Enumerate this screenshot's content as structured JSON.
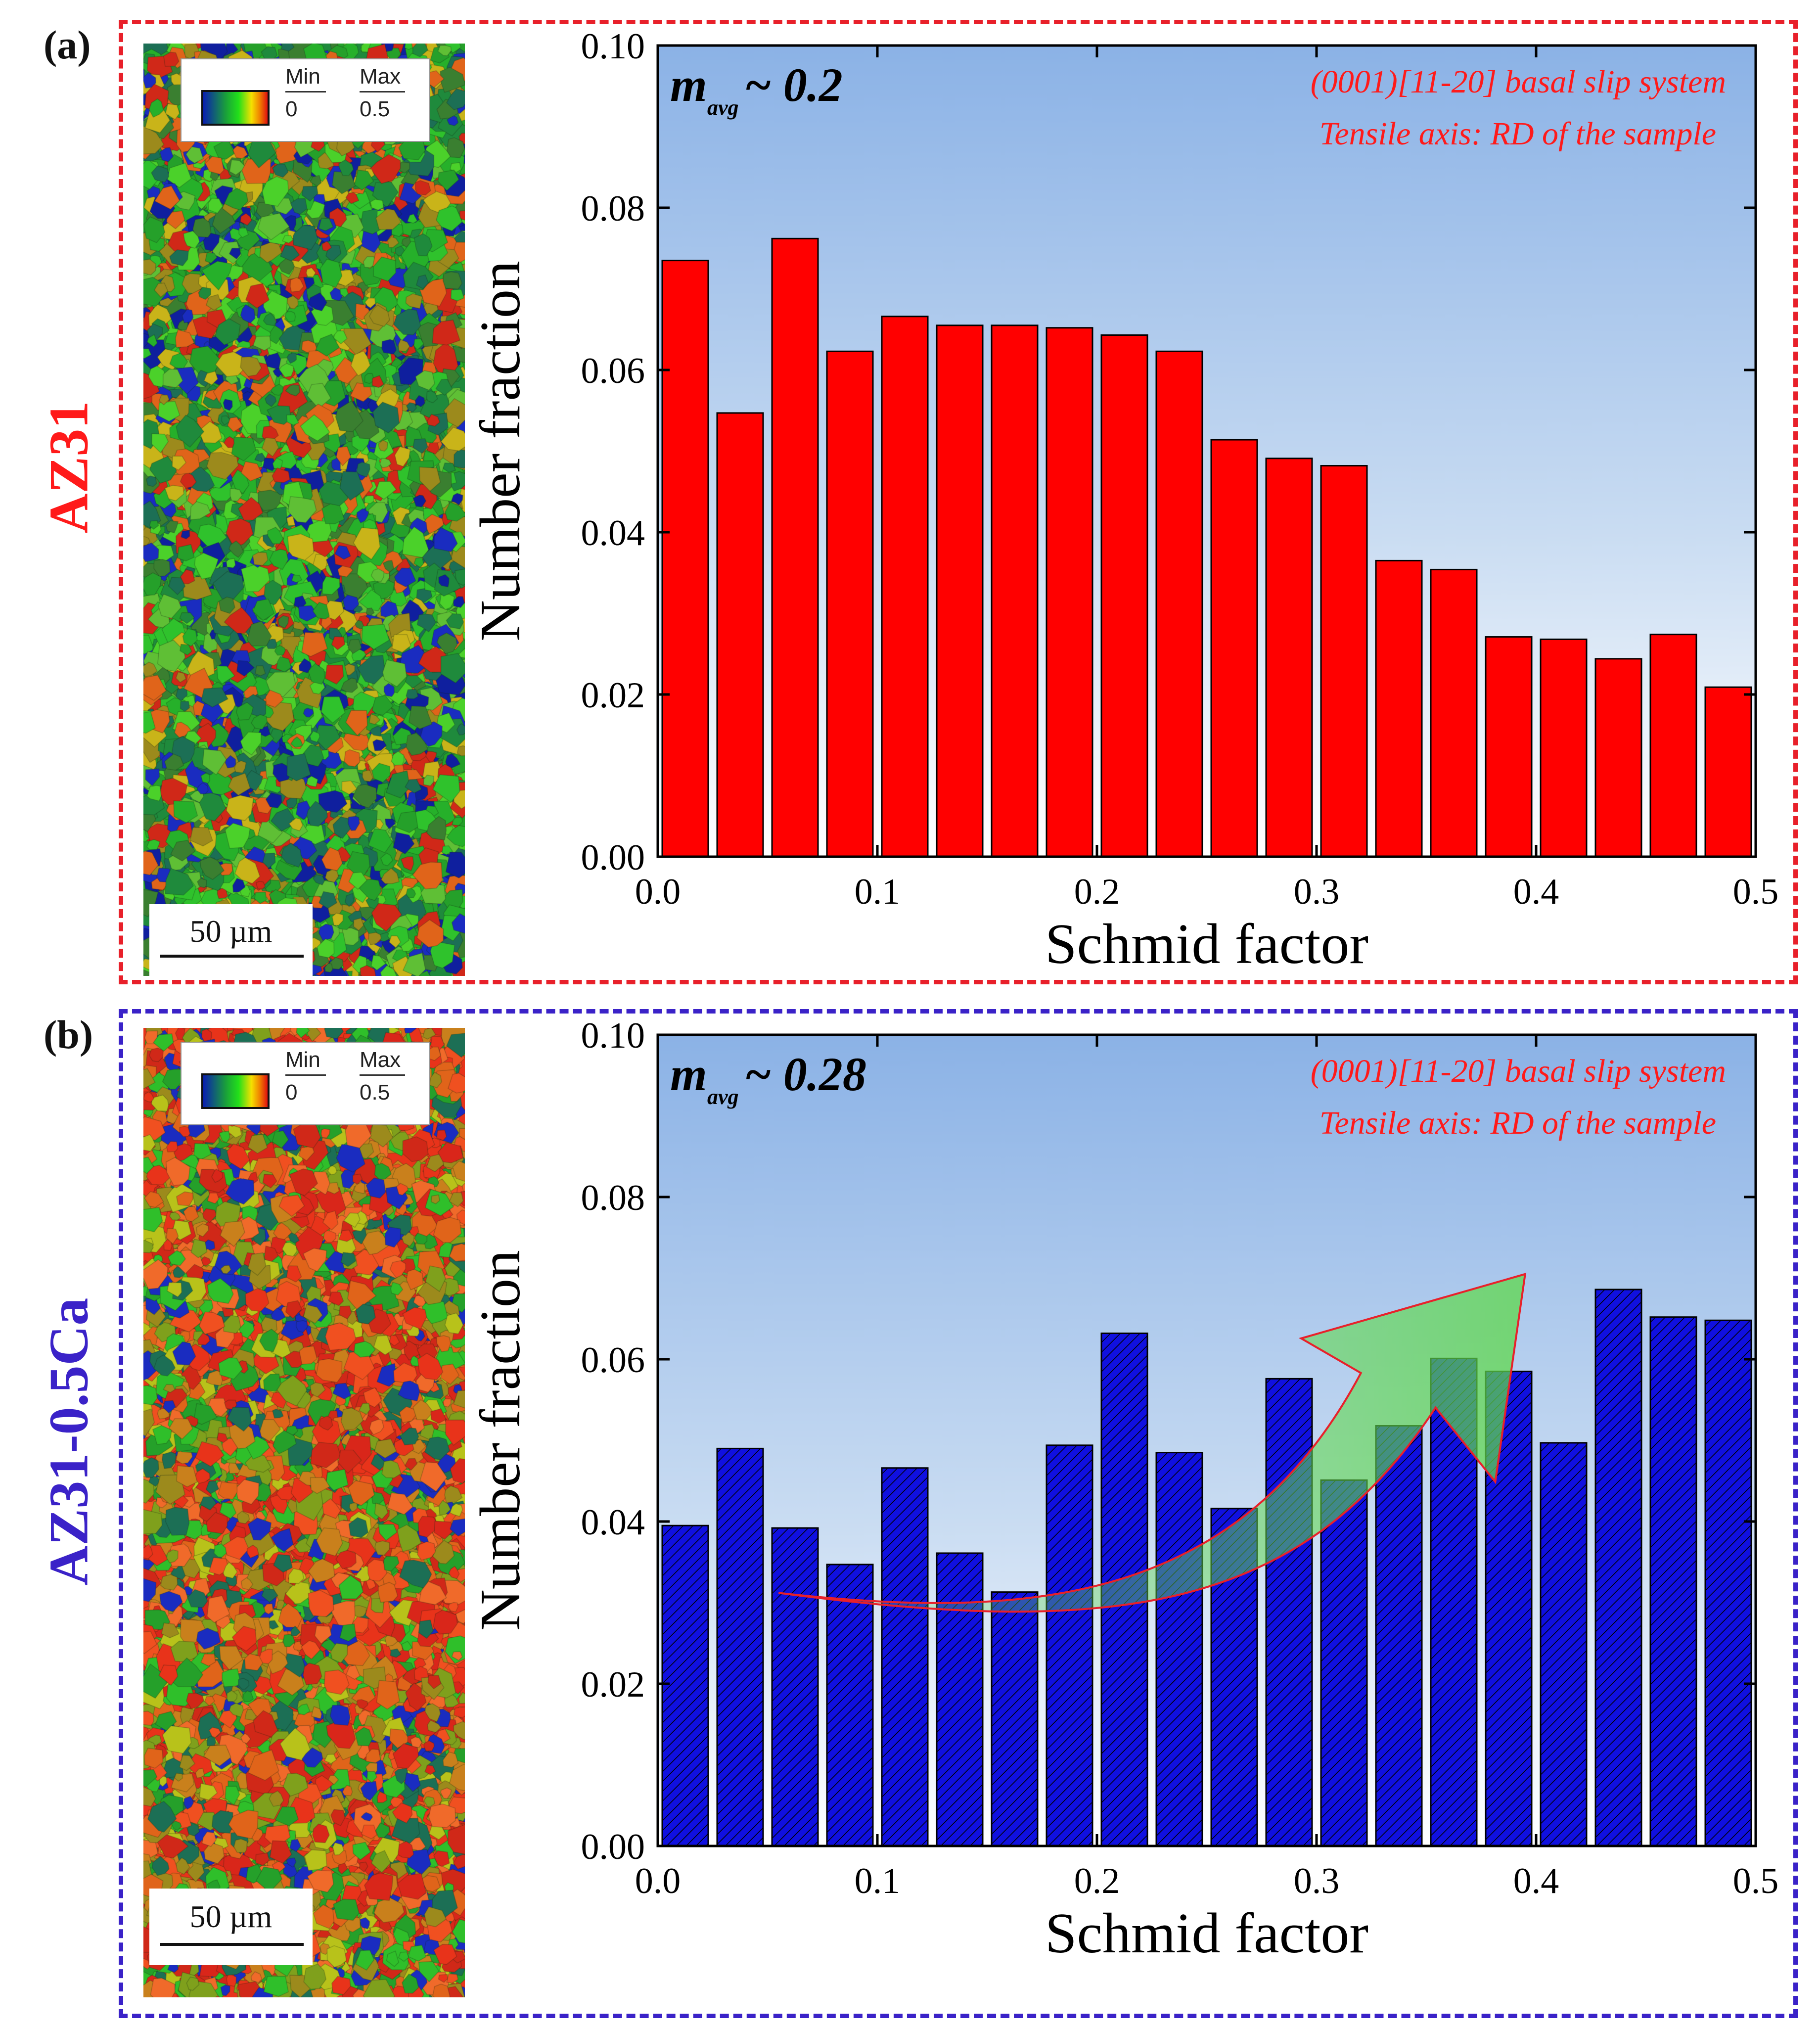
{
  "panels": [
    {
      "letter": "(a)",
      "sample_label": "AZ31",
      "label_color": "#ff1a1a",
      "frame_color": "#e8202a",
      "legend": {
        "min_label": "Min",
        "max_label": "Max",
        "min_value": "0",
        "max_value": "0.5"
      },
      "scale_bar": "50 µm",
      "annotation_m": "m",
      "annotation_sub": "avg",
      "annotation_value": "~ 0.2",
      "slip_system": "(0001)[11-20]  basal slip system",
      "tensile_axis": "Tensile axis: RD of the sample",
      "bar_color": "#ff0000"
    },
    {
      "letter": "(b)",
      "sample_label": "AZ31-0.5Ca",
      "label_color": "#3a22c8",
      "frame_color": "#3a22c8",
      "legend": {
        "min_label": "Min",
        "max_label": "Max",
        "min_value": "0",
        "max_value": "0.5"
      },
      "scale_bar": "50 µm",
      "annotation_m": "m",
      "annotation_sub": "avg",
      "annotation_value": "~ 0.28",
      "slip_system": "(0001)[11-20]  basal slip system",
      "tensile_axis": "Tensile axis: RD of the sample",
      "bar_color": "#1010e0"
    }
  ],
  "chart_data": [
    {
      "type": "bar",
      "xlabel": "Schmid factor",
      "ylabel": "Number fraction",
      "xlim": [
        0,
        0.5
      ],
      "ylim": [
        0,
        0.1
      ],
      "xticks": [
        "0.0",
        "0.1",
        "0.2",
        "0.3",
        "0.4",
        "0.5"
      ],
      "yticks": [
        "0.00",
        "0.02",
        "0.04",
        "0.06",
        "0.08",
        "0.10"
      ],
      "bin_centers": [
        0.0125,
        0.0375,
        0.0625,
        0.0875,
        0.1125,
        0.1375,
        0.1625,
        0.1875,
        0.2125,
        0.2375,
        0.2625,
        0.2875,
        0.3125,
        0.3375,
        0.3625,
        0.3875,
        0.4125,
        0.4375,
        0.4625,
        0.4875
      ],
      "values": [
        0.0735,
        0.0547,
        0.0762,
        0.0623,
        0.0666,
        0.0655,
        0.0655,
        0.0652,
        0.0643,
        0.0623,
        0.0514,
        0.0491,
        0.0482,
        0.0365,
        0.0354,
        0.0271,
        0.0268,
        0.0244,
        0.0274,
        0.0209
      ],
      "series_name": "AZ31",
      "hatched": false
    },
    {
      "type": "bar",
      "xlabel": "Schmid factor",
      "ylabel": "Number fraction",
      "xlim": [
        0,
        0.5
      ],
      "ylim": [
        0,
        0.1
      ],
      "xticks": [
        "0.0",
        "0.1",
        "0.2",
        "0.3",
        "0.4",
        "0.5"
      ],
      "yticks": [
        "0.00",
        "0.02",
        "0.04",
        "0.06",
        "0.08",
        "0.10"
      ],
      "bin_centers": [
        0.0125,
        0.0375,
        0.0625,
        0.0875,
        0.1125,
        0.1375,
        0.1625,
        0.1875,
        0.2125,
        0.2375,
        0.2625,
        0.2875,
        0.3125,
        0.3375,
        0.3625,
        0.3875,
        0.4125,
        0.4375,
        0.4625,
        0.4875
      ],
      "values": [
        0.0395,
        0.049,
        0.0392,
        0.0347,
        0.0466,
        0.0361,
        0.0313,
        0.0494,
        0.0632,
        0.0485,
        0.0416,
        0.0576,
        0.0451,
        0.0518,
        0.0601,
        0.0585,
        0.0497,
        0.0686,
        0.0652,
        0.0648
      ],
      "series_name": "AZ31-0.5Ca",
      "hatched": true,
      "trend_arrow": {
        "from": [
          0.055,
          0.0312
        ],
        "to": [
          0.395,
          0.0705
        ]
      }
    }
  ]
}
